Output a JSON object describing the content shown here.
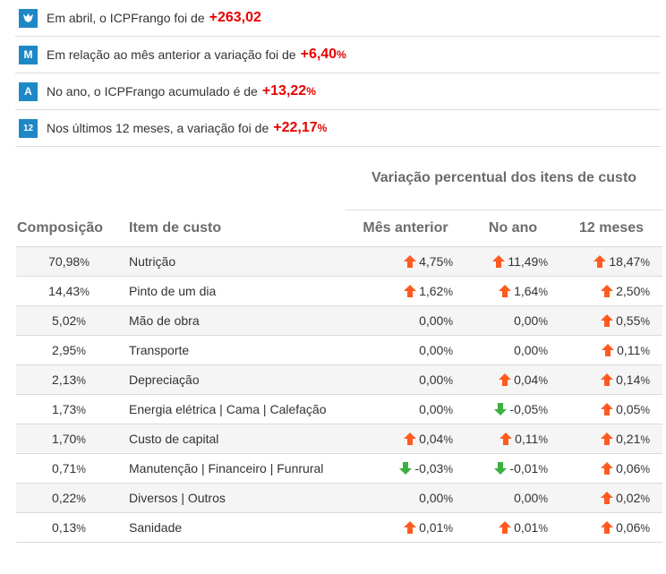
{
  "summary": [
    {
      "icon": "chicken-icon",
      "text": "Em abril, o ICPFrango foi de",
      "value": "+263,02",
      "unit": ""
    },
    {
      "icon": "month-m-icon",
      "badge": "M",
      "text": "Em relação ao mês anterior a variação foi de",
      "value": "+6,40",
      "unit": "%"
    },
    {
      "icon": "year-a-icon",
      "badge": "A",
      "text": "No ano, o ICPFrango acumulado é de",
      "value": "+13,22",
      "unit": "%"
    },
    {
      "icon": "twelve-months-icon",
      "badge": "12",
      "text": "Nos últimos 12 meses, a variação foi de",
      "value": "+22,17",
      "unit": "%"
    }
  ],
  "table": {
    "group_header": "Variação percentual dos itens de custo",
    "headers": [
      "Composição",
      "Item de custo",
      "Mês anterior",
      "No ano",
      "12 meses"
    ],
    "rows": [
      {
        "comp": "70,98",
        "item": "Nutrição",
        "mes": "4,75",
        "ano": "11,49",
        "doze": "18,47",
        "dirs": [
          "up",
          "up",
          "up"
        ]
      },
      {
        "comp": "14,43",
        "item": "Pinto de um dia",
        "mes": "1,62",
        "ano": "1,64",
        "doze": "2,50",
        "dirs": [
          "up",
          "up",
          "up"
        ]
      },
      {
        "comp": "5,02",
        "item": "Mão de obra",
        "mes": "0,00",
        "ano": "0,00",
        "doze": "0,55",
        "dirs": [
          "",
          "",
          "up"
        ]
      },
      {
        "comp": "2,95",
        "item": "Transporte",
        "mes": "0,00",
        "ano": "0,00",
        "doze": "0,11",
        "dirs": [
          "",
          "",
          "up"
        ]
      },
      {
        "comp": "2,13",
        "item": "Depreciação",
        "mes": "0,00",
        "ano": "0,04",
        "doze": "0,14",
        "dirs": [
          "",
          "up",
          "up"
        ]
      },
      {
        "comp": "1,73",
        "item": "Energia elétrica | Cama | Calefação",
        "mes": "0,00",
        "ano": "-0,05",
        "doze": "0,05",
        "dirs": [
          "",
          "down",
          "up"
        ]
      },
      {
        "comp": "1,70",
        "item": "Custo de capital",
        "mes": "0,04",
        "ano": "0,11",
        "doze": "0,21",
        "dirs": [
          "up",
          "up",
          "up"
        ]
      },
      {
        "comp": "0,71",
        "item": "Manutenção | Financeiro | Funrural",
        "mes": "-0,03",
        "ano": "-0,01",
        "doze": "0,06",
        "dirs": [
          "down",
          "down",
          "up"
        ]
      },
      {
        "comp": "0,22",
        "item": "Diversos | Outros",
        "mes": "0,00",
        "ano": "0,00",
        "doze": "0,02",
        "dirs": [
          "",
          "",
          "up"
        ]
      },
      {
        "comp": "0,13",
        "item": "Sanidade",
        "mes": "0,01",
        "ano": "0,01",
        "doze": "0,06",
        "dirs": [
          "up",
          "up",
          "up"
        ]
      }
    ],
    "unit": "%",
    "colors": {
      "up": "#ff5a1f",
      "down": "#3cb043",
      "accent": "#e60000",
      "badge": "#1e88c6"
    }
  }
}
